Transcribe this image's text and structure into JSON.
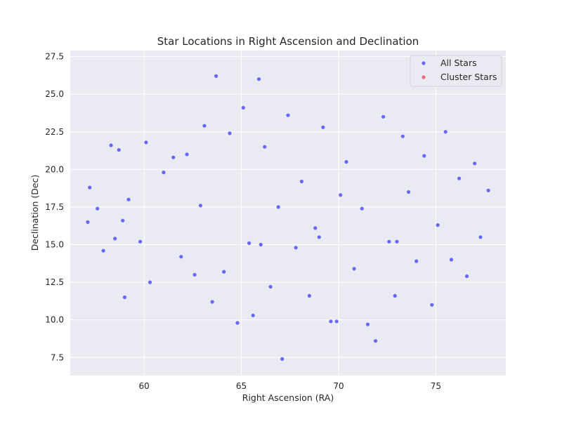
{
  "chart_data": {
    "type": "scatter",
    "title": "Star Locations in Right Ascension and Declination",
    "xlabel": "Right Ascension (RA)",
    "ylabel": "Declination (Dec)",
    "xlim": [
      56.2,
      78.6
    ],
    "ylim": [
      6.3,
      27.9
    ],
    "xticks": [
      60,
      65,
      70,
      75
    ],
    "xtick_labels": [
      "60",
      "65",
      "70",
      "75"
    ],
    "yticks": [
      7.5,
      10.0,
      12.5,
      15.0,
      17.5,
      20.0,
      22.5,
      25.0,
      27.5
    ],
    "ytick_labels": [
      "7.5",
      "10.0",
      "12.5",
      "15.0",
      "17.5",
      "20.0",
      "22.5",
      "25.0",
      "27.5"
    ],
    "grid": true,
    "legend_position": "top-right",
    "background_color": "#eaeaf2",
    "grid_color": "#ffffff",
    "series": [
      {
        "name": "All Stars",
        "color": "#3b3bff",
        "opacity": 0.75,
        "points": [
          [
            57.2,
            18.8
          ],
          [
            57.1,
            16.5
          ],
          [
            57.6,
            17.4
          ],
          [
            57.9,
            14.6
          ],
          [
            58.3,
            21.6
          ],
          [
            58.5,
            15.4
          ],
          [
            58.9,
            16.6
          ],
          [
            58.7,
            21.3
          ],
          [
            59.0,
            11.5
          ],
          [
            59.2,
            18.0
          ],
          [
            59.8,
            15.2
          ],
          [
            60.1,
            21.8
          ],
          [
            60.3,
            12.5
          ],
          [
            61.0,
            19.8
          ],
          [
            61.5,
            20.8
          ],
          [
            61.9,
            14.2
          ],
          [
            62.2,
            21.0
          ],
          [
            62.6,
            13.0
          ],
          [
            63.1,
            22.9
          ],
          [
            63.5,
            11.2
          ],
          [
            63.7,
            26.2
          ],
          [
            64.1,
            13.2
          ],
          [
            64.4,
            22.4
          ],
          [
            64.8,
            9.8
          ],
          [
            65.1,
            24.1
          ],
          [
            65.4,
            15.1
          ],
          [
            65.6,
            10.3
          ],
          [
            65.9,
            26.0
          ],
          [
            66.2,
            21.5
          ],
          [
            66.5,
            12.2
          ],
          [
            66.9,
            17.5
          ],
          [
            67.1,
            7.4
          ],
          [
            67.4,
            23.6
          ],
          [
            67.8,
            14.8
          ],
          [
            68.1,
            19.2
          ],
          [
            68.5,
            11.6
          ],
          [
            68.8,
            16.1
          ],
          [
            69.2,
            22.8
          ],
          [
            69.6,
            9.9
          ],
          [
            69.9,
            9.9
          ],
          [
            70.1,
            18.3
          ],
          [
            70.4,
            20.5
          ],
          [
            70.8,
            13.4
          ],
          [
            71.2,
            17.4
          ],
          [
            71.5,
            9.7
          ],
          [
            71.9,
            8.6
          ],
          [
            72.3,
            23.5
          ],
          [
            72.6,
            15.2
          ],
          [
            72.9,
            11.6
          ],
          [
            73.3,
            22.2
          ],
          [
            73.6,
            18.5
          ],
          [
            74.0,
            13.9
          ],
          [
            74.4,
            20.9
          ],
          [
            74.8,
            11.0
          ],
          [
            75.1,
            16.3
          ],
          [
            75.5,
            22.5
          ],
          [
            75.8,
            14.0
          ],
          [
            76.2,
            19.4
          ],
          [
            76.6,
            12.9
          ],
          [
            77.0,
            20.4
          ],
          [
            77.3,
            15.5
          ],
          [
            77.7,
            18.6
          ],
          [
            62.9,
            17.6
          ],
          [
            66.0,
            15.0
          ],
          [
            69.0,
            15.5
          ],
          [
            73.0,
            15.2
          ]
        ]
      },
      {
        "name": "Cluster Stars",
        "color": "#e8191c",
        "opacity": 0.6,
        "points": []
      }
    ]
  }
}
